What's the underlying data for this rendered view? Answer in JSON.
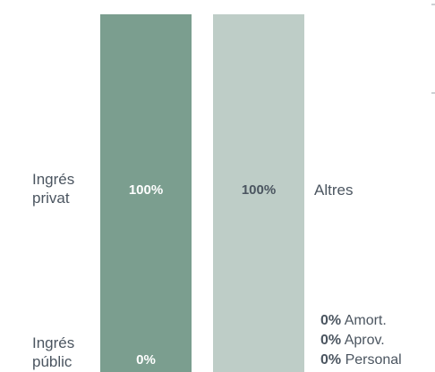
{
  "chart_data": {
    "type": "bar",
    "orientation": "stacked-columns",
    "columns": [
      {
        "segments": [
          {
            "category": "Ingrés privat",
            "value": 100,
            "label": "100%"
          },
          {
            "category": "Ingrés públic",
            "value": 0,
            "label": "0%"
          }
        ],
        "color": "#7b9e8f",
        "label_color": "#ffffff"
      },
      {
        "segments": [
          {
            "category": "Altres",
            "value": 100,
            "label": "100%"
          },
          {
            "category": "Amort.",
            "value": 0,
            "label": "0%"
          },
          {
            "category": "Aprov.",
            "value": 0,
            "label": "0%"
          },
          {
            "category": "Personal",
            "value": 0,
            "label": "0%"
          }
        ],
        "color": "#becdc7",
        "label_color": "#4b5560"
      }
    ],
    "ylim": [
      0,
      100
    ]
  },
  "left_labels": {
    "privat": [
      "Ingrés",
      "privat"
    ],
    "public": [
      "Ingrés",
      "públic"
    ]
  },
  "right_labels": {
    "altres": "Altres",
    "small": [
      {
        "pct": "0%",
        "name": "Amort."
      },
      {
        "pct": "0%",
        "name": "Aprov."
      },
      {
        "pct": "0%",
        "name": "Personal"
      }
    ]
  },
  "colors": {
    "text": "#4b5560",
    "marker": "#9aa3a8"
  }
}
